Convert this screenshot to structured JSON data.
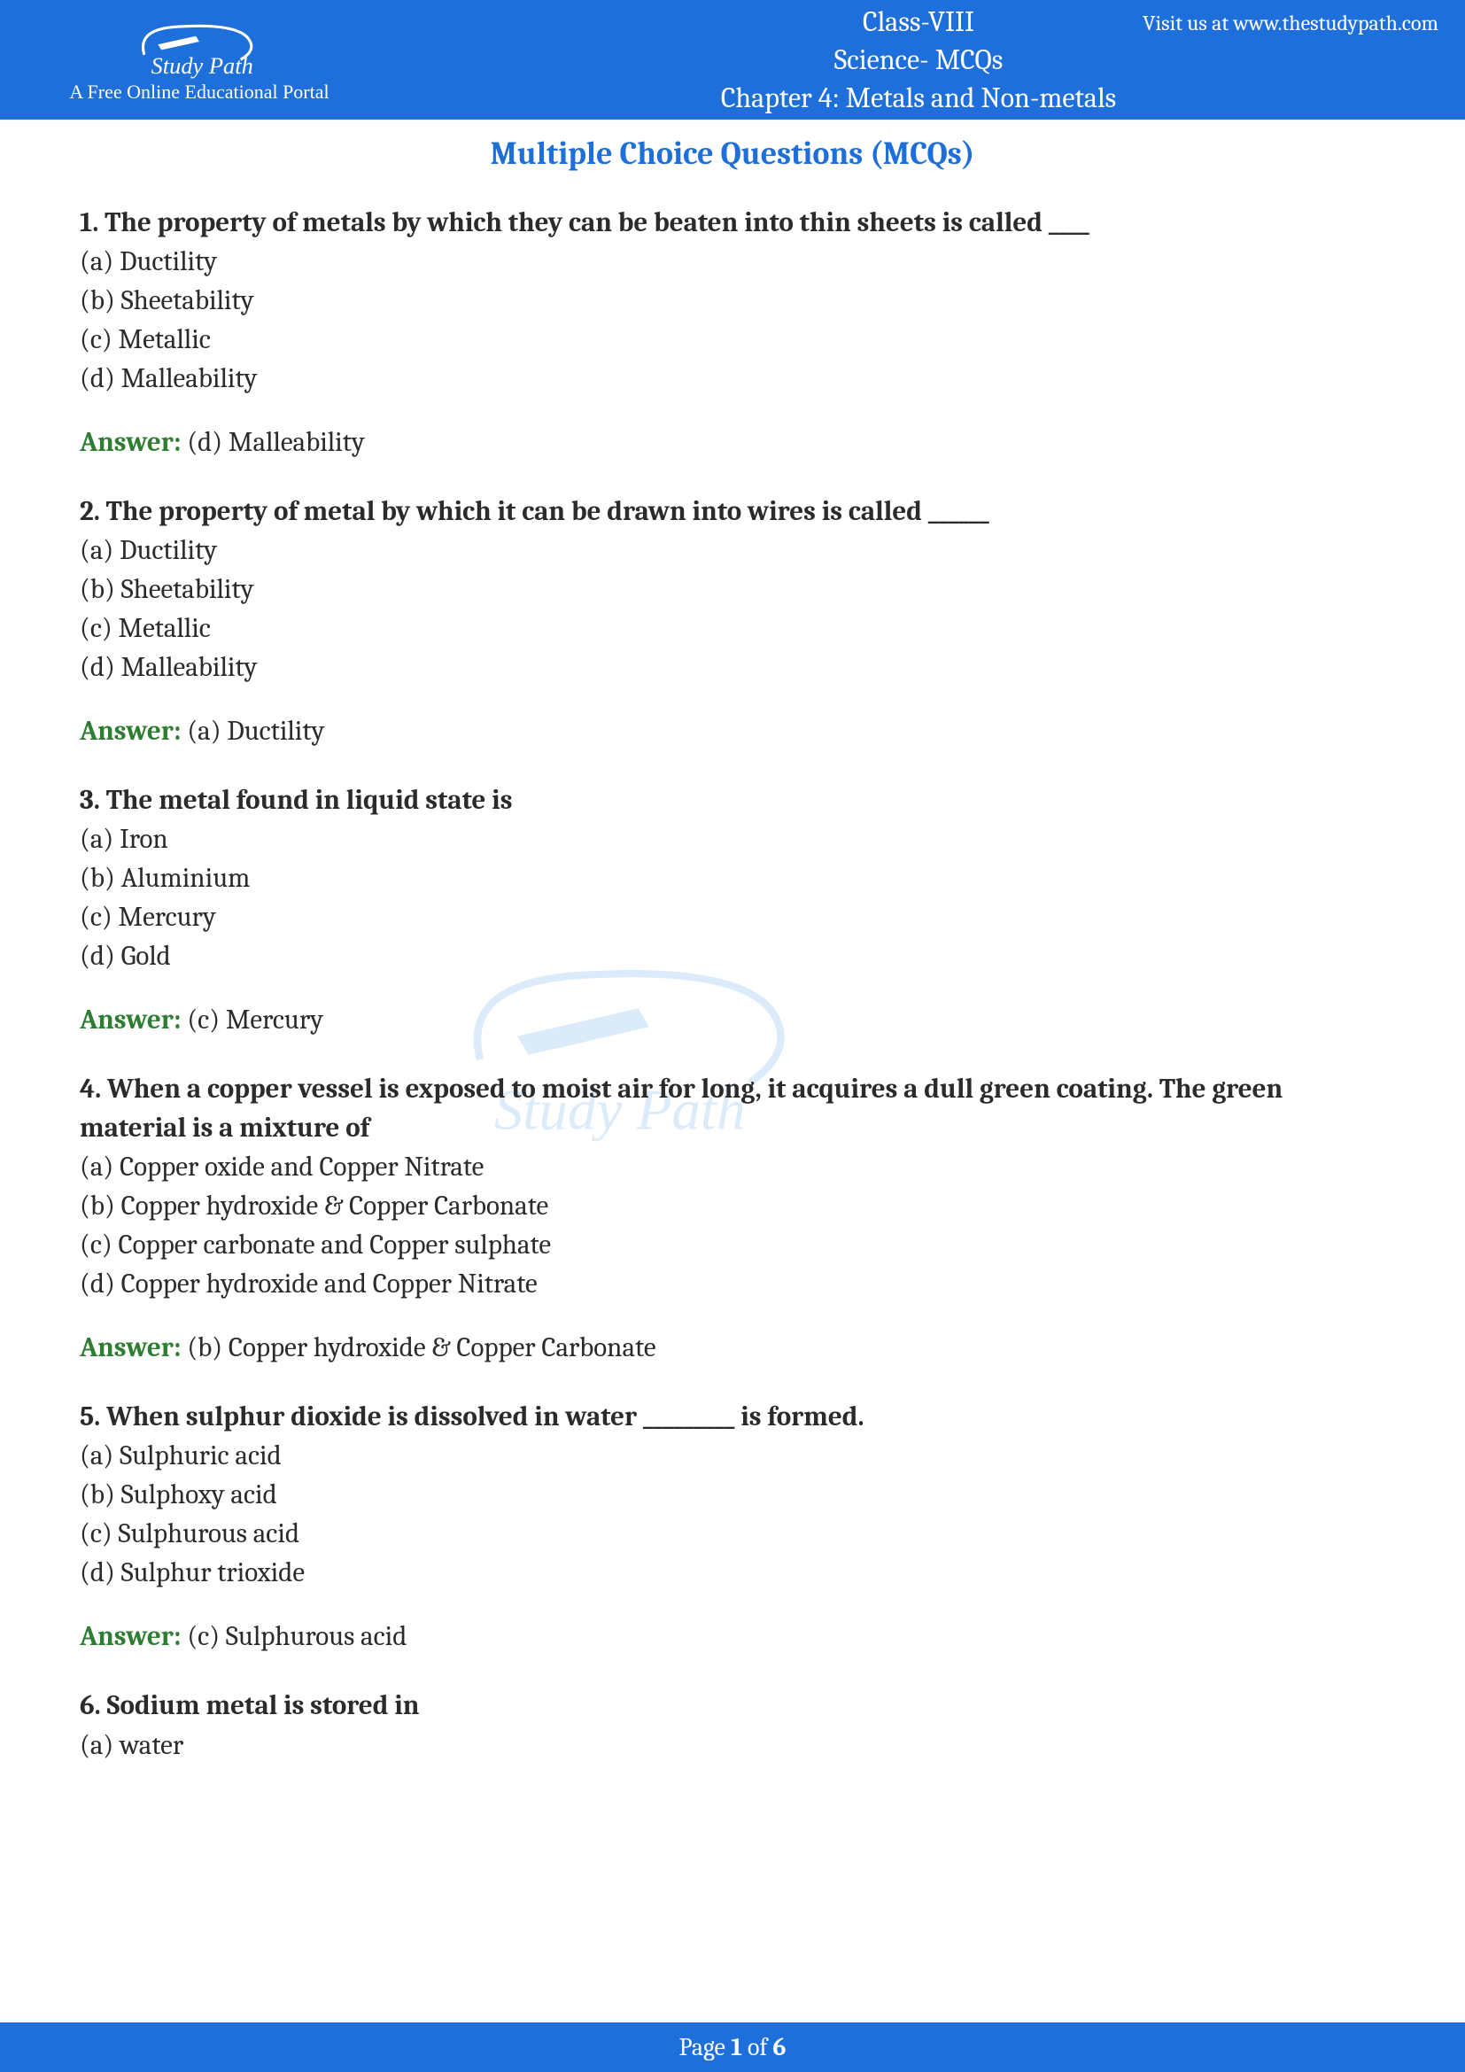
{
  "header": {
    "visit_text": "Visit us at www.thestudypath.com",
    "class_line": "Class-VIII",
    "subject_line": "Science- MCQs",
    "chapter_line": "Chapter 4: Metals and Non-metals",
    "logo_tagline": "A Free Online Educational Portal",
    "logo_script": "Study Path"
  },
  "section_title": "Multiple Choice Questions (MCQs)",
  "questions": [
    {
      "q": "1. The property of metals by which they can be beaten into thin sheets is called ____",
      "opts": [
        "(a) Ductility",
        "(b) Sheetability",
        "(c) Metallic",
        "(d) Malleability"
      ],
      "ans": "(d) Malleability"
    },
    {
      "q": "2. The property of metal by which it can be drawn into wires is called ______",
      "opts": [
        "(a) Ductility",
        "(b) Sheetability",
        "(c) Metallic",
        "(d) Malleability"
      ],
      "ans": "(a) Ductility"
    },
    {
      "q": "3. The metal found in liquid state is",
      "opts": [
        "(a) Iron",
        "(b) Aluminium",
        "(c) Mercury",
        "(d) Gold"
      ],
      "ans": "(c) Mercury"
    },
    {
      "q": "4. When a copper vessel is exposed to moist air for long, it acquires a dull green coating. The green material is a mixture of",
      "opts": [
        "(a) Copper oxide and Copper Nitrate",
        "(b) Copper hydroxide & Copper Carbonate",
        "(c) Copper carbonate and Copper sulphate",
        "(d) Copper hydroxide and Copper Nitrate"
      ],
      "ans": "(b) Copper hydroxide & Copper Carbonate"
    },
    {
      "q": "5. When sulphur dioxide is dissolved in water _________ is formed.",
      "opts": [
        "(a) Sulphuric acid",
        "(b) Sulphoxy acid",
        "(c) Sulphurous acid",
        "(d) Sulphur trioxide"
      ],
      "ans": "(c) Sulphurous acid"
    },
    {
      "q": "6. Sodium metal is stored in",
      "opts": [
        "(a) water"
      ],
      "ans": null
    }
  ],
  "answer_label": "Answer:",
  "footer": {
    "prefix": "Page ",
    "current": "1",
    "of": " of ",
    "total": "6"
  },
  "colors": {
    "header_bg": "#1e6fd9",
    "answer_green": "#2e7d32",
    "text": "#2b2b2b",
    "watermark": "#9ec7f0"
  }
}
